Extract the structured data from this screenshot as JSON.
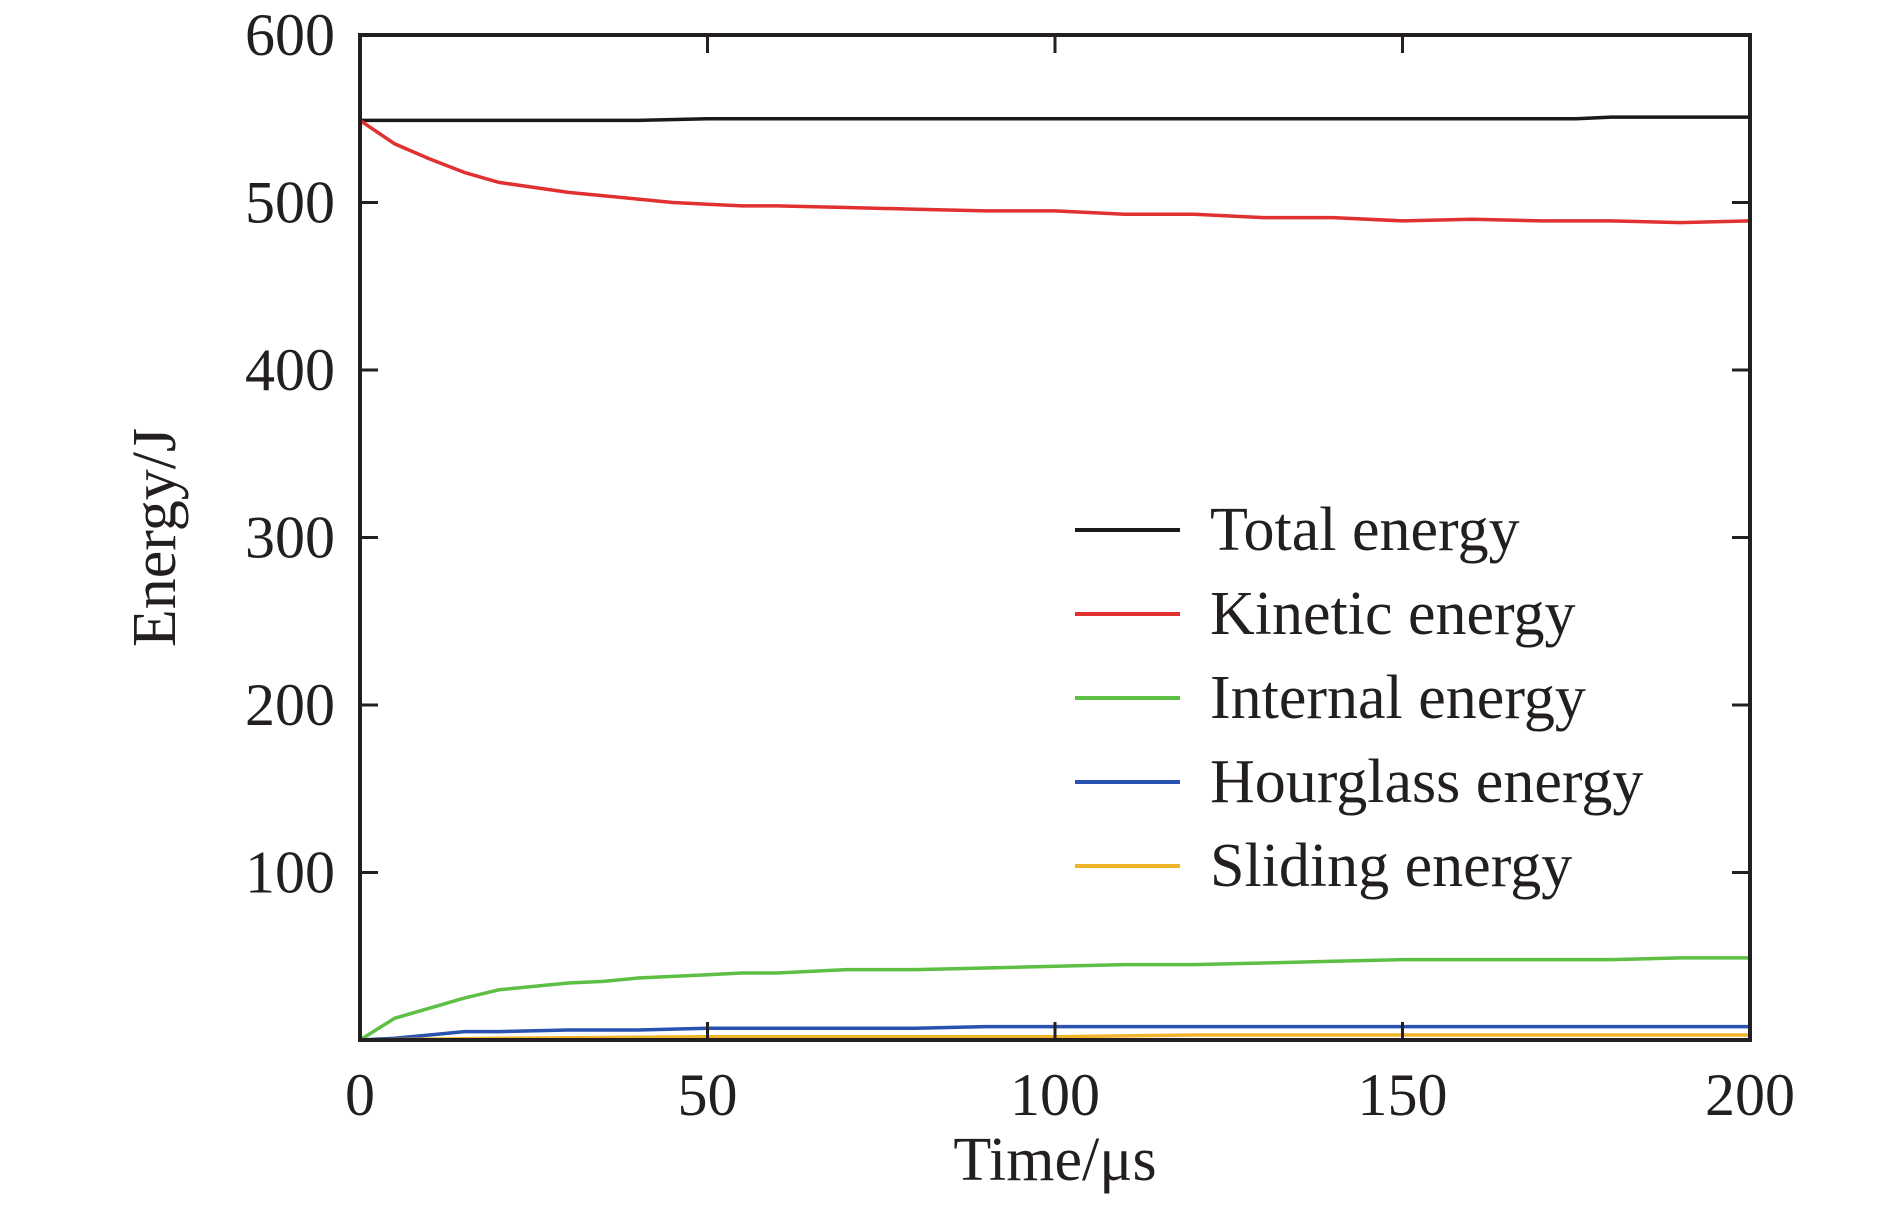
{
  "chart_data": {
    "type": "line",
    "title": "",
    "xlabel": "Time/μs",
    "ylabel": "Energy/J",
    "xlim": [
      0,
      200
    ],
    "ylim": [
      0,
      600
    ],
    "x_ticks": [
      0,
      50,
      100,
      150,
      200
    ],
    "x_tick_labels": [
      "0",
      "50",
      "100",
      "150",
      "200"
    ],
    "y_ticks": [
      100,
      200,
      300,
      400,
      500,
      600
    ],
    "y_tick_labels": [
      "100",
      "200",
      "300",
      "400",
      "500",
      "600"
    ],
    "grid": false,
    "legend_position": "center-right",
    "series": [
      {
        "name": "Total energy",
        "color": "#1a1a1a",
        "x": [
          0,
          20,
          40,
          50,
          60,
          80,
          100,
          120,
          140,
          160,
          175,
          180,
          200
        ],
        "y": [
          549,
          549,
          549,
          550,
          550,
          550,
          550,
          550,
          550,
          550,
          550,
          551,
          551
        ]
      },
      {
        "name": "Kinetic energy",
        "color": "#e03030",
        "x": [
          0,
          5,
          10,
          15,
          20,
          25,
          30,
          35,
          40,
          45,
          50,
          55,
          60,
          70,
          80,
          90,
          100,
          110,
          120,
          130,
          140,
          150,
          160,
          170,
          180,
          190,
          200
        ],
        "y": [
          549,
          535,
          526,
          518,
          512,
          509,
          506,
          504,
          502,
          500,
          499,
          498,
          498,
          497,
          496,
          495,
          495,
          493,
          493,
          491,
          491,
          489,
          490,
          489,
          489,
          488,
          489
        ]
      },
      {
        "name": "Internal energy",
        "color": "#5dbf44",
        "x": [
          0,
          5,
          10,
          15,
          20,
          25,
          30,
          35,
          40,
          45,
          50,
          55,
          60,
          70,
          80,
          90,
          100,
          110,
          120,
          130,
          140,
          150,
          160,
          170,
          180,
          190,
          200
        ],
        "y": [
          0,
          13,
          19,
          25,
          30,
          32,
          34,
          35,
          37,
          38,
          39,
          40,
          40,
          42,
          42,
          43,
          44,
          45,
          45,
          46,
          47,
          48,
          48,
          48,
          48,
          49,
          49
        ]
      },
      {
        "name": "Hourglass energy",
        "color": "#2a52b0",
        "x": [
          0,
          5,
          10,
          15,
          20,
          30,
          40,
          50,
          60,
          80,
          90,
          100,
          120,
          150,
          200
        ],
        "y": [
          0,
          1,
          3,
          5,
          5,
          6,
          6,
          7,
          7,
          7,
          8,
          8,
          8,
          8,
          8
        ]
      },
      {
        "name": "Sliding energy",
        "color": "#f0b429",
        "x": [
          0,
          20,
          50,
          100,
          120,
          150,
          200
        ],
        "y": [
          0,
          1,
          2,
          2,
          3,
          3,
          3
        ]
      }
    ]
  }
}
